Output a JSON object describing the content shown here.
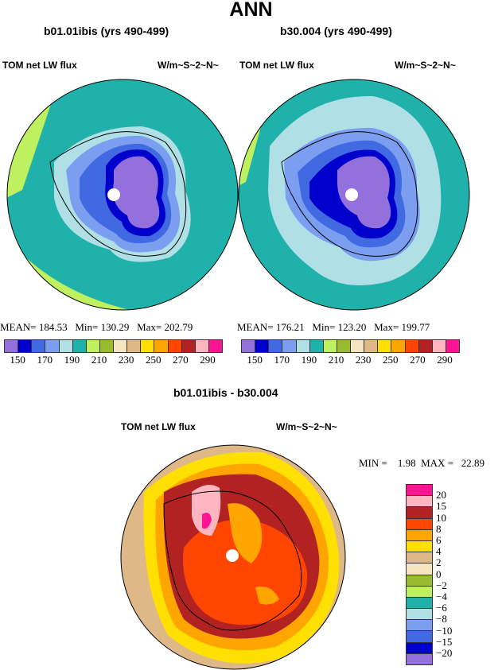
{
  "title": "ANN",
  "palette": [
    "#9370DB",
    "#0000CD",
    "#4169E1",
    "#7B9EF0",
    "#B0E0E6",
    "#20B2AA",
    "#BFF060",
    "#98BB30",
    "#F5E6C0",
    "#DEB887",
    "#FFE000",
    "#FFA500",
    "#FF4500",
    "#B22222",
    "#FFB6C1",
    "#FF1493"
  ],
  "panels": [
    {
      "title": "b01.01ibis (yrs 490-499)",
      "variable": "TOM net LW flux",
      "units": "W/m~S~2~N~",
      "stats": "MEAN= 184.53   Min= 130.29   Max= 202.79",
      "colorbar_labels": [
        "150",
        "170",
        "190",
        "210",
        "230",
        "250",
        "270",
        "290"
      ]
    },
    {
      "title": "b30.004 (yrs 490-499)",
      "variable": "TOM net LW flux",
      "units": "W/m~S~2~N~",
      "stats": "MEAN= 176.21   Min= 123.20   Max= 199.77",
      "colorbar_labels": [
        "150",
        "170",
        "190",
        "210",
        "230",
        "250",
        "270",
        "290"
      ]
    }
  ],
  "diff": {
    "title": "b01.01ibis - b30.004",
    "variable": "TOM net LW flux",
    "units": "W/m~S~2~N~",
    "stats": "MIN =    1.98  MAX =   22.89",
    "colorbar_labels": [
      "20",
      "15",
      "10",
      "8",
      "6",
      "4",
      "2",
      "0",
      "−2",
      "−4",
      "−6",
      "−8",
      "−10",
      "−15",
      "−20"
    ]
  }
}
